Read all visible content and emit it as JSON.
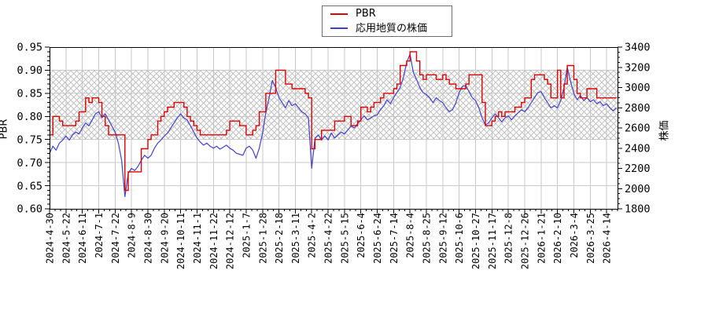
{
  "legend": {
    "items": [
      {
        "label": "PBR",
        "color": "#dd0000"
      },
      {
        "label": "応用地質の株価",
        "color": "#4040cc"
      }
    ]
  },
  "chart_data": {
    "type": "line",
    "title": "",
    "grid": true,
    "legend_position": "top-center",
    "band": {
      "axis": "left",
      "from": 0.75,
      "to": 0.9,
      "style": "crosshatch",
      "color": "#bbbbbb"
    },
    "colors": {
      "grid": "#c9c9c9",
      "axis": "#000000",
      "pbr": "#dd0000",
      "price": "#4040cc"
    },
    "left_axis": {
      "label": "PBR",
      "min": 0.6,
      "max": 0.95,
      "tick_step": 0.05,
      "minor_step": 0.01,
      "tick_labels": [
        "0.60",
        "0.65",
        "0.70",
        "0.75",
        "0.80",
        "0.85",
        "0.90",
        "0.95"
      ]
    },
    "right_axis": {
      "label": "株価",
      "min": 1800,
      "max": 3400,
      "tick_step": 200,
      "minor_step": 50,
      "tick_labels": [
        "1800",
        "2000",
        "2200",
        "2400",
        "2600",
        "2800",
        "3000",
        "3200",
        "3400"
      ]
    },
    "x_tick_labels": [
      "2024-4-30",
      "2024-5-22",
      "2024-6-11",
      "2024-7-1",
      "2024-7-22",
      "2024-8-9",
      "2024-8-30",
      "2024-9-20",
      "2024-10-11",
      "2024-11-1",
      "2024-11-22",
      "2024-12-12",
      "2025-1-7",
      "2025-1-28",
      "2025-2-18",
      "2025-3-11",
      "2025-4-2",
      "2025-4-22",
      "2025-5-15",
      "2025-6-4",
      "2025-6-24",
      "2025-7-14",
      "2025-8-4",
      "2025-8-25",
      "2025-9-12",
      "2025-10-6",
      "2025-10-27",
      "2025-11-17",
      "2025-12-8",
      "2025-12-26",
      "2026-1-21",
      "2026-2-10",
      "2026-3-4",
      "2026-3-25",
      "2026-4-14"
    ],
    "days_between_ticks": 15,
    "total_days": 520,
    "sample_step_days": 3,
    "series": [
      {
        "name": "PBR",
        "axis": "left",
        "color": "#dd0000",
        "style": "step",
        "values": [
          0.76,
          0.8,
          0.8,
          0.79,
          0.78,
          0.78,
          0.78,
          0.78,
          0.79,
          0.81,
          0.81,
          0.84,
          0.83,
          0.84,
          0.84,
          0.83,
          0.8,
          0.78,
          0.76,
          0.76,
          0.76,
          0.76,
          0.76,
          0.64,
          0.68,
          0.68,
          0.68,
          0.68,
          0.73,
          0.73,
          0.75,
          0.76,
          0.76,
          0.79,
          0.8,
          0.81,
          0.82,
          0.82,
          0.83,
          0.83,
          0.83,
          0.82,
          0.8,
          0.79,
          0.78,
          0.77,
          0.76,
          0.76,
          0.76,
          0.76,
          0.76,
          0.76,
          0.76,
          0.76,
          0.77,
          0.79,
          0.79,
          0.79,
          0.78,
          0.78,
          0.76,
          0.76,
          0.77,
          0.78,
          0.81,
          0.81,
          0.85,
          0.85,
          0.85,
          0.9,
          0.9,
          0.9,
          0.87,
          0.87,
          0.86,
          0.86,
          0.86,
          0.86,
          0.85,
          0.84,
          0.73,
          0.75,
          0.75,
          0.77,
          0.77,
          0.77,
          0.77,
          0.79,
          0.79,
          0.79,
          0.8,
          0.8,
          0.78,
          0.78,
          0.79,
          0.82,
          0.82,
          0.81,
          0.82,
          0.83,
          0.83,
          0.84,
          0.85,
          0.85,
          0.85,
          0.86,
          0.87,
          0.91,
          0.91,
          0.92,
          0.94,
          0.94,
          0.92,
          0.89,
          0.88,
          0.89,
          0.89,
          0.89,
          0.88,
          0.88,
          0.89,
          0.88,
          0.87,
          0.87,
          0.86,
          0.86,
          0.86,
          0.87,
          0.89,
          0.89,
          0.89,
          0.89,
          0.83,
          0.78,
          0.78,
          0.79,
          0.8,
          0.81,
          0.8,
          0.81,
          0.81,
          0.81,
          0.82,
          0.82,
          0.83,
          0.84,
          0.84,
          0.88,
          0.89,
          0.89,
          0.89,
          0.88,
          0.87,
          0.84,
          0.84,
          0.9,
          0.84,
          0.87,
          0.91,
          0.91,
          0.88,
          0.85,
          0.84,
          0.84,
          0.86,
          0.86,
          0.86,
          0.84,
          0.84,
          0.84,
          0.84,
          0.84,
          0.84,
          0.84
        ]
      },
      {
        "name": "応用地質の株価",
        "axis": "right",
        "color": "#4040cc",
        "style": "line",
        "values": [
          2350,
          2420,
          2380,
          2450,
          2480,
          2520,
          2480,
          2530,
          2560,
          2540,
          2600,
          2650,
          2620,
          2680,
          2740,
          2760,
          2700,
          2740,
          2680,
          2620,
          2560,
          2450,
          2280,
          1920,
          2150,
          2200,
          2180,
          2220,
          2280,
          2330,
          2300,
          2330,
          2400,
          2450,
          2480,
          2520,
          2550,
          2600,
          2650,
          2700,
          2740,
          2700,
          2680,
          2620,
          2560,
          2500,
          2460,
          2430,
          2450,
          2420,
          2400,
          2420,
          2390,
          2410,
          2430,
          2400,
          2380,
          2350,
          2340,
          2330,
          2400,
          2420,
          2380,
          2300,
          2400,
          2550,
          2750,
          2900,
          3070,
          3000,
          2900,
          2850,
          2800,
          2870,
          2820,
          2840,
          2800,
          2760,
          2740,
          2700,
          2200,
          2500,
          2530,
          2480,
          2520,
          2480,
          2550,
          2500,
          2530,
          2560,
          2540,
          2580,
          2620,
          2600,
          2640,
          2680,
          2720,
          2680,
          2700,
          2720,
          2730,
          2780,
          2820,
          2880,
          2840,
          2900,
          2950,
          3000,
          3100,
          3250,
          3330,
          3150,
          3080,
          3000,
          2950,
          2930,
          2900,
          2850,
          2900,
          2870,
          2850,
          2800,
          2760,
          2780,
          2850,
          2950,
          3010,
          3020,
          2960,
          2900,
          2870,
          2800,
          2700,
          2630,
          2650,
          2700,
          2740,
          2700,
          2660,
          2700,
          2720,
          2680,
          2720,
          2750,
          2780,
          2760,
          2800,
          2850,
          2900,
          2950,
          2960,
          2900,
          2850,
          2800,
          2820,
          2800,
          2870,
          3000,
          3200,
          3060,
          2940,
          2880,
          2920,
          2870,
          2900,
          2860,
          2880,
          2840,
          2860,
          2820,
          2840,
          2800,
          2770,
          2800
        ]
      }
    ]
  }
}
